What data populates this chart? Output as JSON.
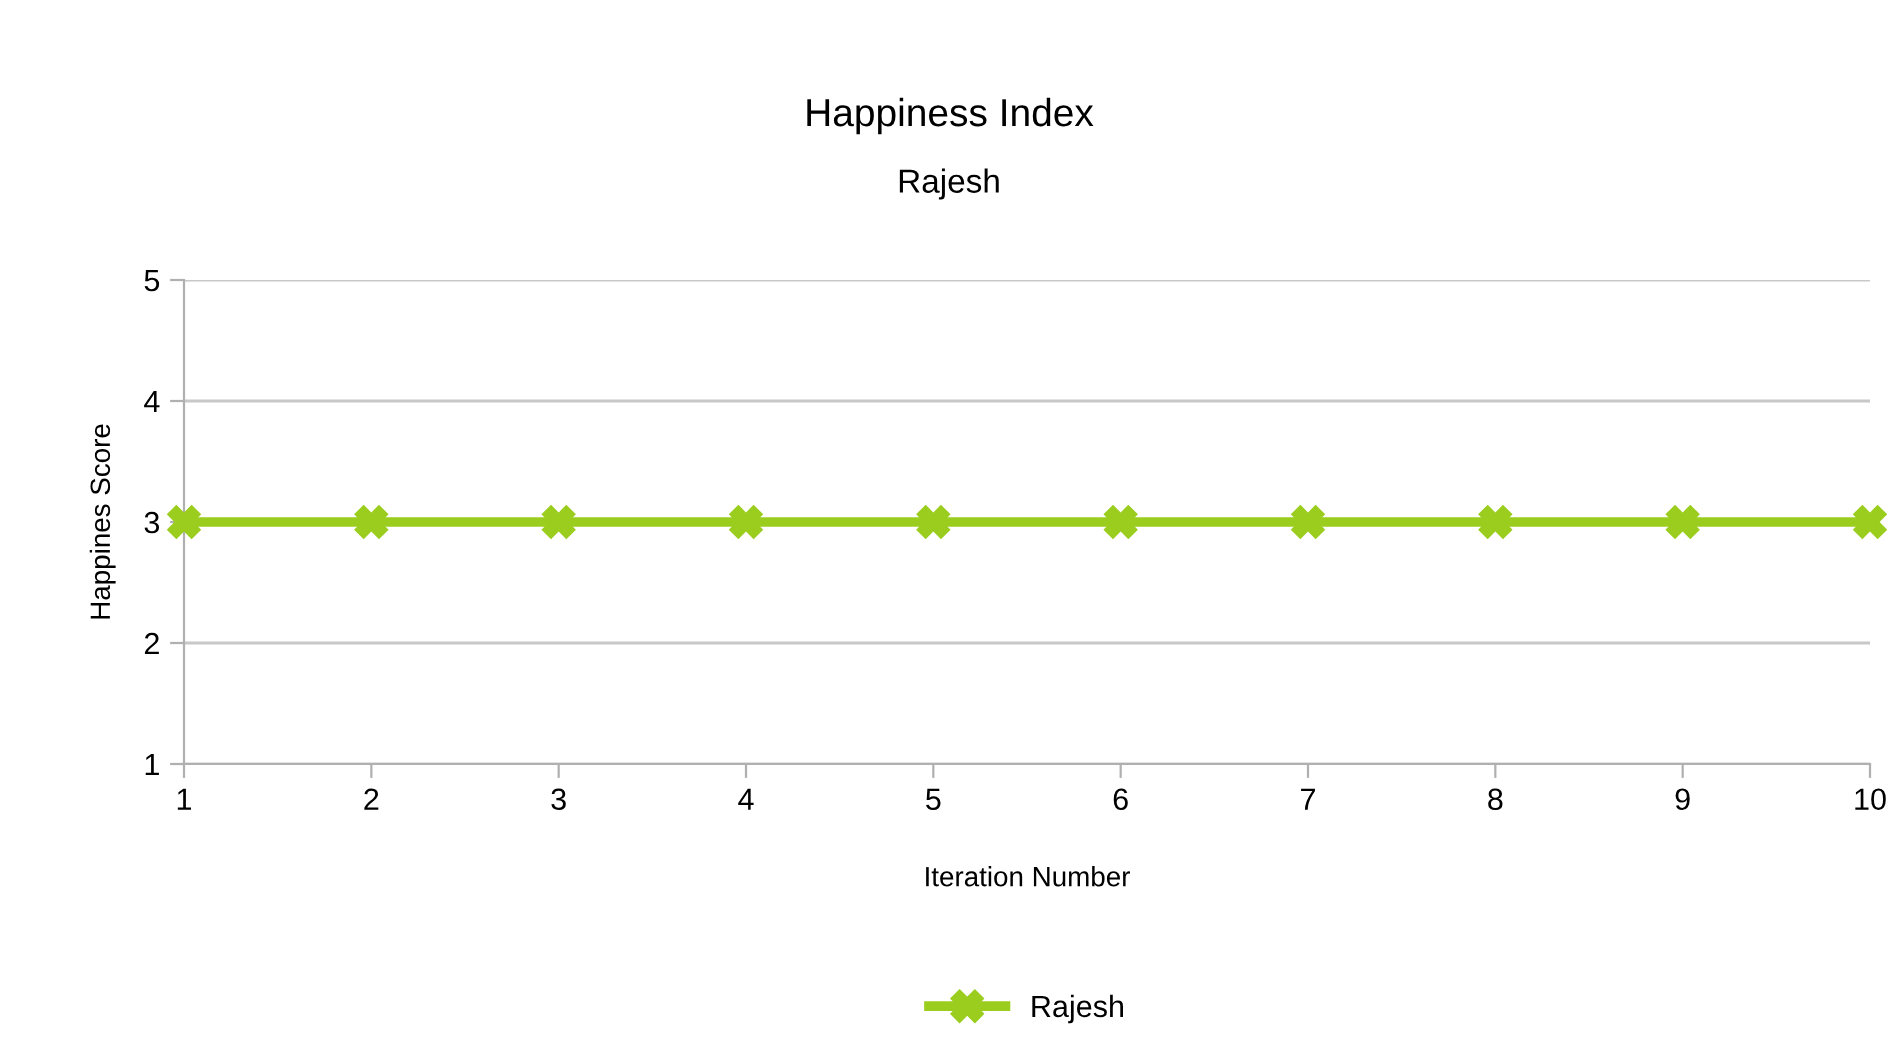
{
  "chart_data": {
    "type": "line",
    "title": "Happiness Index",
    "subtitle": "Rajesh",
    "xlabel": "Iteration Number",
    "ylabel": "Happines Score",
    "x": [
      1,
      2,
      3,
      4,
      5,
      6,
      7,
      8,
      9,
      10
    ],
    "series": [
      {
        "name": "Rajesh",
        "color": "#9acd1e",
        "values": [
          3,
          3,
          3,
          3,
          3,
          3,
          3,
          3,
          3,
          3
        ]
      }
    ],
    "xlim": [
      1,
      10
    ],
    "xticks": [
      1,
      2,
      3,
      4,
      5,
      6,
      7,
      8,
      9,
      10
    ],
    "ylim": [
      1,
      5
    ],
    "yticks": [
      1,
      2,
      3,
      4,
      5
    ],
    "grid": "y",
    "legend": "bottom",
    "marker": "cross",
    "line_style": "solid"
  }
}
